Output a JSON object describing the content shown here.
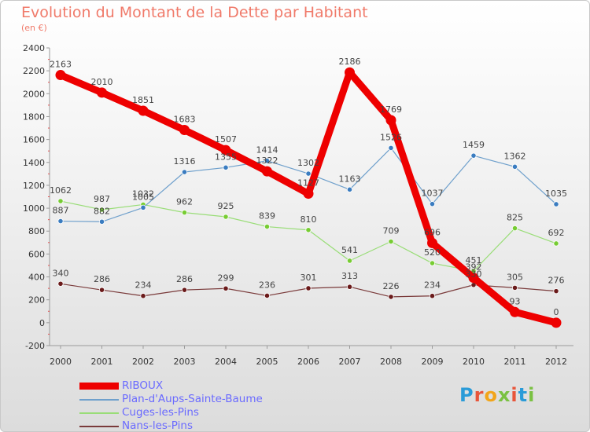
{
  "title": "Evolution du Montant de la Dette par Habitant",
  "subtitle": "(en €)",
  "logo": {
    "text": "Proxiti",
    "colors": [
      "#2a9bd8",
      "#e8553a",
      "#f2a51a",
      "#7ac142",
      "#e8553a",
      "#2a9bd8",
      "#7ac142"
    ]
  },
  "chart_data": {
    "type": "line",
    "title": "Evolution du Montant de la Dette par Habitant",
    "subtitle": "(en €)",
    "x": [
      "2000",
      "2001",
      "2002",
      "2003",
      "2004",
      "2005",
      "2006",
      "2007",
      "2008",
      "2009",
      "2010",
      "2011",
      "2012"
    ],
    "ylim": [
      -200,
      2400
    ],
    "yticks": [
      -200,
      0,
      200,
      400,
      600,
      800,
      1000,
      1200,
      1400,
      1600,
      1800,
      2000,
      2200,
      2400
    ],
    "grid": false,
    "legend_position": "bottom-left",
    "series": [
      {
        "name": "RIBOUX",
        "color": "#ee0000",
        "width": 9,
        "values": [
          2163,
          2010,
          1851,
          1683,
          1507,
          1322,
          1127,
          2186,
          1769,
          696,
          392,
          93,
          0
        ],
        "labels": [
          "2163",
          "2010",
          "1851",
          "1683",
          "1507",
          "1322",
          "1127",
          "2186",
          "1769",
          "696",
          "392",
          "93",
          "0"
        ]
      },
      {
        "name": "Plan-d'Aups-Sainte-Baume",
        "color": "#6fa0cc",
        "marker": "#3a7cc0",
        "width": 1.2,
        "values": [
          887,
          882,
          1005,
          1316,
          1355,
          1414,
          1302,
          1163,
          1526,
          1037,
          1459,
          1362,
          1035
        ],
        "labels": [
          "887",
          "882",
          "1005",
          "1316",
          "1355",
          "1414",
          "1302",
          "1163",
          "1526",
          "1037",
          "1459",
          "1362",
          "1035"
        ]
      },
      {
        "name": "Cuges-les-Pins",
        "color": "#99dd77",
        "marker": "#77cc33",
        "width": 1.2,
        "values": [
          1062,
          987,
          1032,
          962,
          925,
          839,
          810,
          541,
          709,
          520,
          451,
          825,
          692
        ],
        "labels": [
          "1062",
          "987",
          "1032",
          "962",
          "925",
          "839",
          "810",
          "541",
          "709",
          "520",
          "451",
          "825",
          "692"
        ]
      },
      {
        "name": "Nans-les-Pins",
        "color": "#7a3a3a",
        "marker": "#6a1a1a",
        "width": 1.2,
        "values": [
          340,
          286,
          234,
          286,
          299,
          236,
          301,
          313,
          226,
          234,
          330,
          305,
          276
        ],
        "labels": [
          "340",
          "286",
          "234",
          "286",
          "299",
          "236",
          "301",
          "313",
          "226",
          "234",
          "330",
          "305",
          "276"
        ]
      }
    ]
  }
}
